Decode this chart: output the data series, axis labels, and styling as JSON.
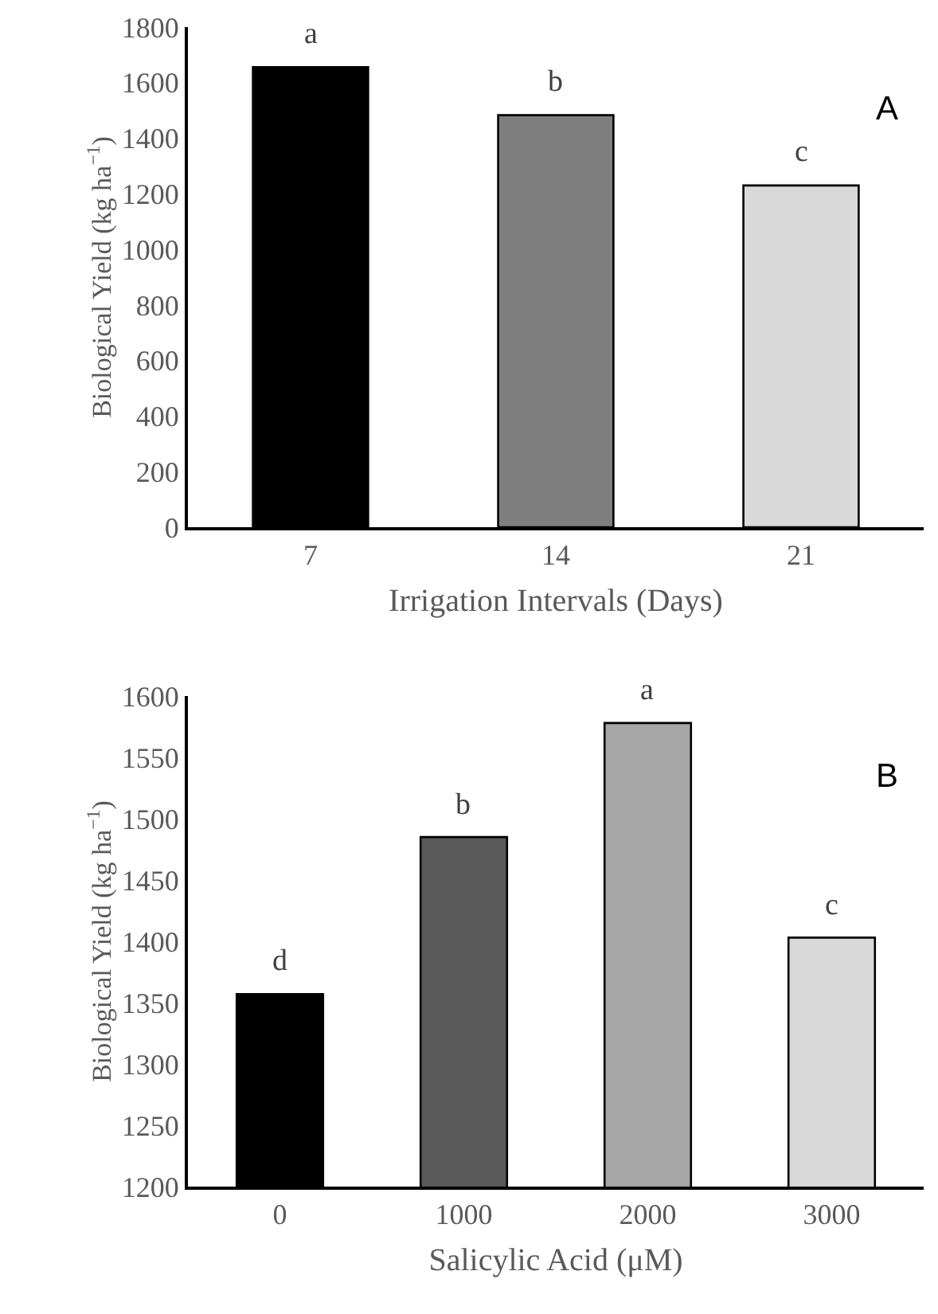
{
  "chart_data": [
    {
      "type": "bar",
      "categories": [
        "7",
        "14",
        "21"
      ],
      "values": [
        1656,
        1483,
        1230
      ],
      "colors": [
        "#000000",
        "#7f7f7f",
        "#d9d9d9"
      ],
      "xlabel": "Irrigation Intervals (Days)",
      "ylabel": "Biological Yield (kg ha$^{−1}$)",
      "ylim": [
        0,
        1800
      ],
      "yticks": [
        0,
        200,
        400,
        600,
        800,
        1000,
        1200,
        1400,
        1600,
        1800
      ],
      "grid": false,
      "legend": false,
      "annotations": [
        {
          "text": "a",
          "x": "7",
          "y": 1656
        },
        {
          "text": "b",
          "x": "14",
          "y": 1483
        },
        {
          "text": "c",
          "x": "21",
          "y": 1230
        },
        "A"
      ]
    },
    {
      "type": "bar",
      "categories": [
        "0",
        "1000",
        "2000",
        "3000"
      ],
      "values": [
        1357,
        1485,
        1578,
        1403
      ],
      "colors": [
        "#000000",
        "#595959",
        "#a6a6a6",
        "#d9d9d9"
      ],
      "xlabel": "Salicylic Acid (μM)",
      "ylabel": "Biological Yield (kg ha$^{−1}$)",
      "ylim": [
        1200,
        1600
      ],
      "yticks": [
        1200,
        1250,
        1300,
        1350,
        1400,
        1450,
        1500,
        1550,
        1600
      ],
      "grid": false,
      "legend": false,
      "annotations": [
        {
          "text": "d",
          "x": "0",
          "y": 1357
        },
        {
          "text": "b",
          "x": "1000",
          "y": 1485
        },
        {
          "text": "a",
          "x": "2000",
          "y": 1578
        },
        {
          "text": "c",
          "x": "3000",
          "y": 1403
        },
        "B"
      ]
    }
  ]
}
